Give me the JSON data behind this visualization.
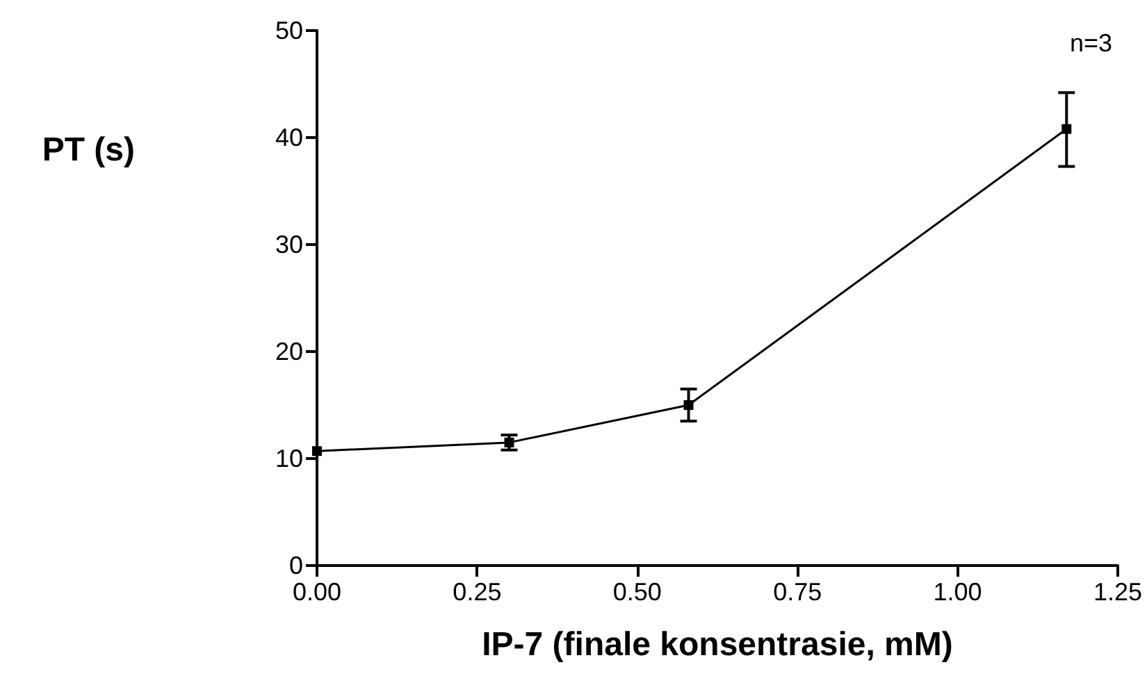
{
  "chart_data": {
    "type": "line",
    "xlabel": "IP-7 (finale konsentrasie, mM)",
    "ylabel": "PT (s)",
    "annotations": [
      "n=3"
    ],
    "x": [
      0,
      0.3,
      0.58,
      1.17
    ],
    "series": [
      {
        "color": "#000000",
        "values": [
          10.7,
          11.5,
          15,
          40.8
        ],
        "errors": [
          null,
          0.7,
          1.5,
          [
            37.3,
            44.2
          ]
        ]
      }
    ],
    "xlim": [
      0,
      1.25
    ],
    "xticks": [
      {
        "value": 0,
        "label": "0.00"
      },
      {
        "value": 0.25,
        "label": "0.25"
      },
      {
        "value": 0.5,
        "label": "0.50"
      },
      {
        "value": 0.75,
        "label": "0.75"
      },
      {
        "value": 1,
        "label": "1.00"
      },
      {
        "value": 1.25,
        "label": "1.25"
      }
    ],
    "ylim": [
      0,
      50
    ],
    "yticks": [
      0,
      10,
      20,
      30,
      40,
      50
    ],
    "marker": "square",
    "line_style": "solid",
    "grid": false
  }
}
